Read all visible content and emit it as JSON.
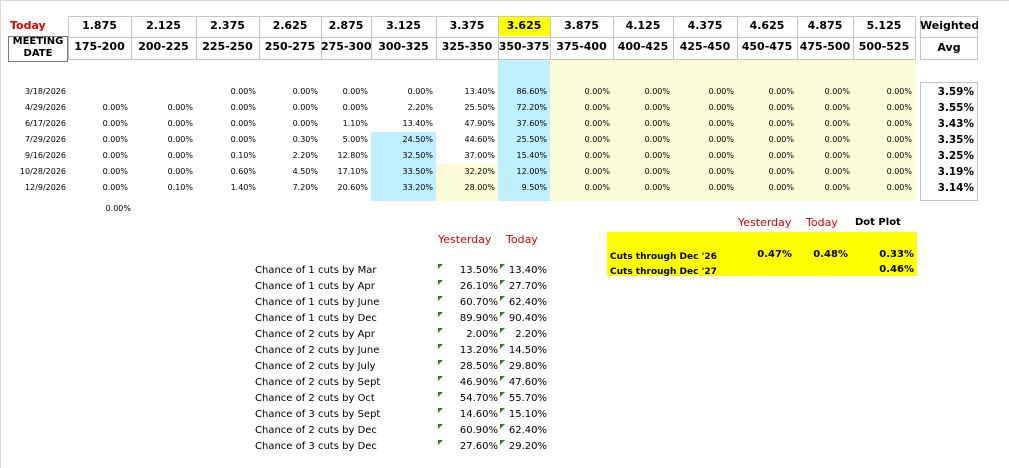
{
  "header": {
    "today_label": "Today",
    "meeting_label_1": "MEETING",
    "meeting_label_2": "DATE",
    "weighted_label_1": "Weighted",
    "weighted_label_2": "Avg",
    "rates": [
      "1.875",
      "2.125",
      "2.375",
      "2.625",
      "2.875",
      "3.125",
      "3.375",
      "3.625",
      "3.875",
      "4.125",
      "4.375",
      "4.625",
      "4.875",
      "5.125"
    ],
    "ranges": [
      "175-200",
      "200-225",
      "225-250",
      "250-275",
      "275-300",
      "300-325",
      "325-350",
      "350-375",
      "375-400",
      "400-425",
      "425-450",
      "450-475",
      "475-500",
      "500-525"
    ]
  },
  "rows": [
    {
      "date": "3/18/2026",
      "values": [
        "",
        "",
        "0.00%",
        "0.00%",
        "0.00%",
        "0.00%",
        "13.40%",
        "86.60%",
        "0.00%",
        "0.00%",
        "0.00%",
        "0.00%",
        "0.00%",
        "0.00%"
      ],
      "avg": "3.59%"
    },
    {
      "date": "4/29/2026",
      "values": [
        "0.00%",
        "0.00%",
        "0.00%",
        "0.00%",
        "0.00%",
        "2.20%",
        "25.50%",
        "72.20%",
        "0.00%",
        "0.00%",
        "0.00%",
        "0.00%",
        "0.00%",
        "0.00%"
      ],
      "avg": "3.55%"
    },
    {
      "date": "6/17/2026",
      "values": [
        "0.00%",
        "0.00%",
        "0.00%",
        "0.00%",
        "1.10%",
        "13.40%",
        "47.90%",
        "37.60%",
        "0.00%",
        "0.00%",
        "0.00%",
        "0.00%",
        "0.00%",
        "0.00%"
      ],
      "avg": "3.43%"
    },
    {
      "date": "7/29/2026",
      "values": [
        "0.00%",
        "0.00%",
        "0.00%",
        "0.30%",
        "5.00%",
        "24.50%",
        "44.60%",
        "25.50%",
        "0.00%",
        "0.00%",
        "0.00%",
        "0.00%",
        "0.00%",
        "0.00%"
      ],
      "avg": "3.35%"
    },
    {
      "date": "9/16/2026",
      "values": [
        "0.00%",
        "0.00%",
        "0.10%",
        "2.20%",
        "12.80%",
        "32.50%",
        "37.00%",
        "15.40%",
        "0.00%",
        "0.00%",
        "0.00%",
        "0.00%",
        "0.00%",
        "0.00%"
      ],
      "avg": "3.25%"
    },
    {
      "date": "10/28/2026",
      "values": [
        "0.00%",
        "0.00%",
        "0.60%",
        "4.50%",
        "17.10%",
        "33.50%",
        "32.20%",
        "12.00%",
        "0.00%",
        "0.00%",
        "0.00%",
        "0.00%",
        "0.00%",
        "0.00%"
      ],
      "avg": "3.19%"
    },
    {
      "date": "12/9/2026",
      "values": [
        "0.00%",
        "0.10%",
        "1.40%",
        "7.20%",
        "20.60%",
        "33.20%",
        "28.00%",
        "9.50%",
        "0.00%",
        "0.00%",
        "0.00%",
        "0.00%",
        "0.00%",
        "0.00%"
      ],
      "avg": "3.14%"
    }
  ],
  "extra_value": "0.00%",
  "chances": {
    "yesterday_label": "Yesterday",
    "today_label": "Today",
    "items": [
      {
        "label": "Chance of 1 cuts by Mar",
        "yesterday": "13.50%",
        "today": "13.40%"
      },
      {
        "label": "Chance of 1 cuts by Apr",
        "yesterday": "26.10%",
        "today": "27.70%"
      },
      {
        "label": "Chance of 1 cuts by June",
        "yesterday": "60.70%",
        "today": "62.40%"
      },
      {
        "label": "Chance of 1 cuts by Dec",
        "yesterday": "89.90%",
        "today": "90.40%"
      },
      {
        "label": "Chance of 2 cuts by Apr",
        "yesterday": "2.00%",
        "today": "2.20%"
      },
      {
        "label": "Chance of 2 cuts by June",
        "yesterday": "13.20%",
        "today": "14.50%"
      },
      {
        "label": "Chance of 2 cuts by July",
        "yesterday": "28.50%",
        "today": "29.80%"
      },
      {
        "label": "Chance of 2 cuts by Sept",
        "yesterday": "46.90%",
        "today": "47.60%"
      },
      {
        "label": "Chance of 2 cuts by Oct",
        "yesterday": "54.70%",
        "today": "55.70%"
      },
      {
        "label": "Chance of 3 cuts by Sept",
        "yesterday": "14.60%",
        "today": "15.10%"
      },
      {
        "label": "Chance of 2 cuts by Dec",
        "yesterday": "60.90%",
        "today": "62.40%"
      },
      {
        "label": "Chance of 3 cuts by Dec",
        "yesterday": "27.60%",
        "today": "29.20%"
      }
    ]
  },
  "cuts": {
    "yesterday_label": "Yesterday",
    "today_label": "Today",
    "dotplot_label": "Dot Plot",
    "dec26_label": "Cuts through Dec '26",
    "dec26_yesterday": "0.47%",
    "dec26_today": "0.48%",
    "dec26_dotplot": "0.33%",
    "dec27_label": "Cuts through Dec '27",
    "dec27_dotplot": "0.46%"
  },
  "colors": {
    "blue_fill": "#bff0ff",
    "yellow_pale": "#fbfbd8",
    "yellow_bright": "#ffff00",
    "red_text": "#e00000",
    "header_fill": "#ffffff"
  }
}
